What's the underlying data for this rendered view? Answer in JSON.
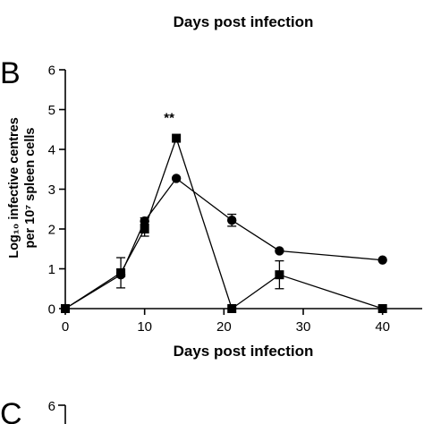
{
  "top_panel": {
    "xlabel": "Days post infection",
    "partial_ticks": [
      "0",
      "10",
      "20",
      "30",
      "40"
    ]
  },
  "chart_data": {
    "type": "line",
    "panel": "B",
    "xlabel": "Days post infection",
    "ylabel_line1": "Log₁₀ infective centres",
    "ylabel_line2": "per 10⁷ spleen cells",
    "xlim": [
      0,
      45
    ],
    "ylim": [
      0,
      6
    ],
    "x_ticks": [
      0,
      10,
      20,
      30,
      40
    ],
    "y_ticks": [
      0,
      1,
      2,
      3,
      4,
      5,
      6
    ],
    "grid": false,
    "annotation": {
      "text": "**",
      "x": 14
    },
    "series": [
      {
        "marker": "circle",
        "x": [
          0,
          7,
          10,
          14,
          21,
          27,
          40
        ],
        "values": [
          0,
          0.85,
          2.2,
          3.27,
          2.22,
          1.45,
          1.22
        ],
        "errors": [
          0,
          0.05,
          0.08,
          0,
          0.15,
          0,
          0
        ]
      },
      {
        "marker": "square",
        "x": [
          0,
          7,
          10,
          14,
          21,
          27,
          40
        ],
        "values": [
          0,
          0.9,
          2.0,
          4.28,
          0,
          0.85,
          0
        ],
        "errors": [
          0,
          0.38,
          0.18,
          0,
          0,
          0.35,
          0
        ]
      }
    ]
  },
  "bottom_panel": {
    "letter": "C",
    "partial_ticks": [
      "6"
    ]
  }
}
